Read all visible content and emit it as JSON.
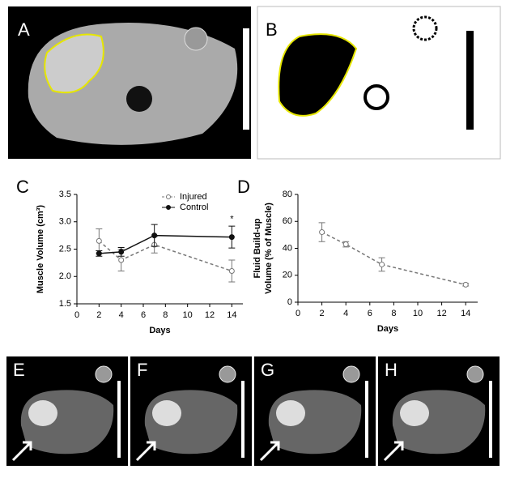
{
  "image_panels": [
    "A",
    "B",
    "E",
    "F",
    "G",
    "H"
  ],
  "chart_data": [
    {
      "type": "line",
      "panel": "C",
      "xlabel": "Days",
      "ylabel": "Muscle Volume (cm³)",
      "x": [
        2,
        4,
        7,
        14
      ],
      "xlim": [
        0,
        15
      ],
      "xticks": [
        0,
        2,
        4,
        6,
        8,
        10,
        12,
        14
      ],
      "ylim": [
        1.5,
        3.5
      ],
      "yticks": [
        1.5,
        {
          "value": 2,
          "label": "2.0"
        },
        2.5,
        {
          "value": 3,
          "label": "3.0"
        },
        3.5
      ],
      "legend": "top",
      "annotations": [
        {
          "text": "*",
          "x": 14,
          "y": 3.05
        }
      ],
      "series": [
        {
          "name": "Injured",
          "color": "#777777",
          "linestyle": "dashed",
          "marker": "open",
          "values": [
            2.65,
            2.3,
            2.58,
            2.1
          ],
          "errors": [
            0.22,
            0.2,
            0.15,
            0.2
          ]
        },
        {
          "name": "Control",
          "color": "#111111",
          "linestyle": "solid",
          "marker": "filled",
          "values": [
            2.42,
            2.45,
            2.75,
            2.72
          ],
          "errors": [
            0.05,
            0.08,
            0.2,
            0.2
          ]
        }
      ]
    },
    {
      "type": "line",
      "panel": "D",
      "xlabel": "Days",
      "ylabel": [
        "Fluid  Build-up",
        "Volume (% of Muscle)"
      ],
      "x": [
        2,
        4,
        7,
        14
      ],
      "xlim": [
        0,
        15
      ],
      "xticks": [
        0,
        2,
        4,
        6,
        8,
        10,
        12,
        14
      ],
      "ylim": [
        0,
        80
      ],
      "yticks": [
        0,
        20,
        40,
        60,
        80
      ],
      "series": [
        {
          "color": "#777777",
          "linestyle": "dashed",
          "marker": "open",
          "values": [
            52,
            43,
            28,
            13
          ],
          "errors": [
            7,
            2,
            5,
            1
          ]
        }
      ]
    }
  ]
}
